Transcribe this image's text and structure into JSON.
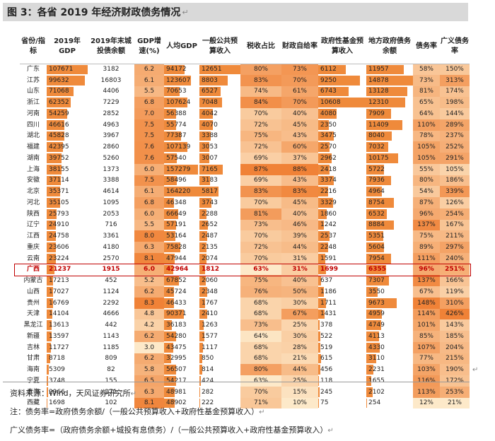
{
  "title": "图 3：各省 2019 年经济财政债务情况",
  "return_mark": "↵",
  "headers": [
    "省份/指标",
    "2019年GDP",
    "2019年末城投债余额",
    "GDP增速(%)",
    "人均GDP",
    "一般公共预算收入",
    "税收占比",
    "财政自给率",
    "政府性基金预算收入",
    "地方政府债务余额",
    "债务率",
    "广义债务率"
  ],
  "rows": [
    [
      "广东",
      "107671",
      "3182",
      "6.2",
      "94172",
      "12651",
      "80%",
      "73%",
      "6112",
      "11957",
      "58%",
      "150%"
    ],
    [
      "江苏",
      "99632",
      "16803",
      "6.1",
      "123607",
      "8803",
      "83%",
      "70%",
      "9250",
      "14878",
      "73%",
      "313%"
    ],
    [
      "山东",
      "71068",
      "4406",
      "5.5",
      "70653",
      "6527",
      "74%",
      "61%",
      "6743",
      "13128",
      "81%",
      "174%"
    ],
    [
      "浙江",
      "62352",
      "7229",
      "6.8",
      "107624",
      "7048",
      "84%",
      "70%",
      "10608",
      "12310",
      "65%",
      "198%"
    ],
    [
      "河南",
      "54259",
      "2852",
      "7.0",
      "56388",
      "4042",
      "70%",
      "40%",
      "4080",
      "7909",
      "64%",
      "144%"
    ],
    [
      "四川",
      "46616",
      "4963",
      "7.5",
      "55774",
      "4070",
      "72%",
      "45%",
      "2350",
      "11409",
      "110%",
      "289%"
    ],
    [
      "湖北",
      "45828",
      "3967",
      "7.5",
      "77387",
      "3388",
      "75%",
      "43%",
      "3475",
      "8040",
      "78%",
      "237%"
    ],
    [
      "福建",
      "42395",
      "2860",
      "7.6",
      "107139",
      "3053",
      "72%",
      "60%",
      "2570",
      "7032",
      "105%",
      "252%"
    ],
    [
      "湖南",
      "39752",
      "5260",
      "7.6",
      "57540",
      "3007",
      "69%",
      "37%",
      "2962",
      "10175",
      "105%",
      "291%"
    ],
    [
      "上海",
      "38155",
      "1373",
      "6.0",
      "157279",
      "7165",
      "87%",
      "88%",
      "2418",
      "5722",
      "55%",
      "105%"
    ],
    [
      "安徽",
      "37114",
      "3388",
      "7.5",
      "58496",
      "3183",
      "69%",
      "43%",
      "3374",
      "7936",
      "80%",
      "186%"
    ],
    [
      "北京",
      "35371",
      "4614",
      "6.1",
      "164220",
      "5817",
      "83%",
      "83%",
      "2216",
      "4964",
      "54%",
      "339%"
    ],
    [
      "河北",
      "35105",
      "1095",
      "6.8",
      "46348",
      "3743",
      "70%",
      "45%",
      "3329",
      "8754",
      "87%",
      "126%"
    ],
    [
      "陕西",
      "25793",
      "2053",
      "6.0",
      "66649",
      "2288",
      "81%",
      "40%",
      "1860",
      "6532",
      "96%",
      "254%"
    ],
    [
      "辽宁",
      "24910",
      "716",
      "5.5",
      "57191",
      "2652",
      "73%",
      "46%",
      "1242",
      "8884",
      "137%",
      "167%"
    ],
    [
      "江西",
      "24758",
      "3361",
      "8.0",
      "53164",
      "2487",
      "70%",
      "39%",
      "2537",
      "5351",
      "75%",
      "211%"
    ],
    [
      "重庆",
      "23606",
      "4180",
      "6.3",
      "75828",
      "2135",
      "72%",
      "44%",
      "2248",
      "5604",
      "89%",
      "297%"
    ],
    [
      "云南",
      "23224",
      "2570",
      "8.1",
      "47944",
      "2074",
      "70%",
      "31%",
      "1591",
      "7954",
      "111%",
      "240%"
    ],
    [
      "广西",
      "21237",
      "1915",
      "6.0",
      "42964",
      "1812",
      "63%",
      "31%",
      "1699",
      "6355",
      "96%",
      "251%"
    ],
    [
      "内蒙古",
      "17213",
      "452",
      "5.2",
      "67852",
      "2060",
      "75%",
      "40%",
      "637",
      "7307",
      "137%",
      "166%"
    ],
    [
      "山西",
      "17027",
      "1124",
      "6.2",
      "45724",
      "2348",
      "76%",
      "50%",
      "1186",
      "3550",
      "67%",
      "119%"
    ],
    [
      "贵州",
      "16769",
      "2292",
      "8.3",
      "46433",
      "1767",
      "68%",
      "30%",
      "1711",
      "9673",
      "148%",
      "310%"
    ],
    [
      "天津",
      "14104",
      "4666",
      "4.8",
      "90371",
      "2410",
      "68%",
      "67%",
      "1431",
      "4959",
      "114%",
      "426%"
    ],
    [
      "黑龙江",
      "13613",
      "442",
      "4.2",
      "36183",
      "1263",
      "73%",
      "25%",
      "378",
      "4749",
      "101%",
      "143%"
    ],
    [
      "新疆",
      "13597",
      "1143",
      "6.2",
      "54280",
      "1577",
      "64%",
      "30%",
      "522",
      "4113",
      "85%",
      "185%"
    ],
    [
      "吉林",
      "11727",
      "1185",
      "3.0",
      "43475",
      "1117",
      "68%",
      "28%",
      "519",
      "4330",
      "107%",
      "204%"
    ],
    [
      "甘肃",
      "8718",
      "809",
      "6.2",
      "32995",
      "850",
      "68%",
      "21%",
      "615",
      "3110",
      "77%",
      "215%"
    ],
    [
      "海南",
      "5309",
      "82",
      "5.8",
      "56507",
      "814",
      "80%",
      "44%",
      "456",
      "2231",
      "103%",
      "190%"
    ],
    [
      "宁夏",
      "3748",
      "155",
      "6.5",
      "54217",
      "424",
      "63%",
      "25%",
      "118",
      "1655",
      "116%",
      "172%"
    ],
    [
      "青海",
      "2966",
      "171",
      "6.3",
      "48981",
      "282",
      "70%",
      "15%",
      "245",
      "2102",
      "113%",
      "253%"
    ],
    [
      "西藏",
      "1698",
      "102",
      "8.1",
      "48902",
      "222",
      "71%",
      "10%",
      "75",
      "254",
      "12%",
      "21%"
    ]
  ],
  "highlight_row": 18,
  "notes": [
    "资料来源：Wind，天风证券研究所",
    "注：债务率=政府债务余额/（一般公共预算收入+政府性基金预算收入）",
    "广义债务率=（政府债务余额+城投有息债务）/（一般公共预算收入+政府性基金预算收入）"
  ]
}
